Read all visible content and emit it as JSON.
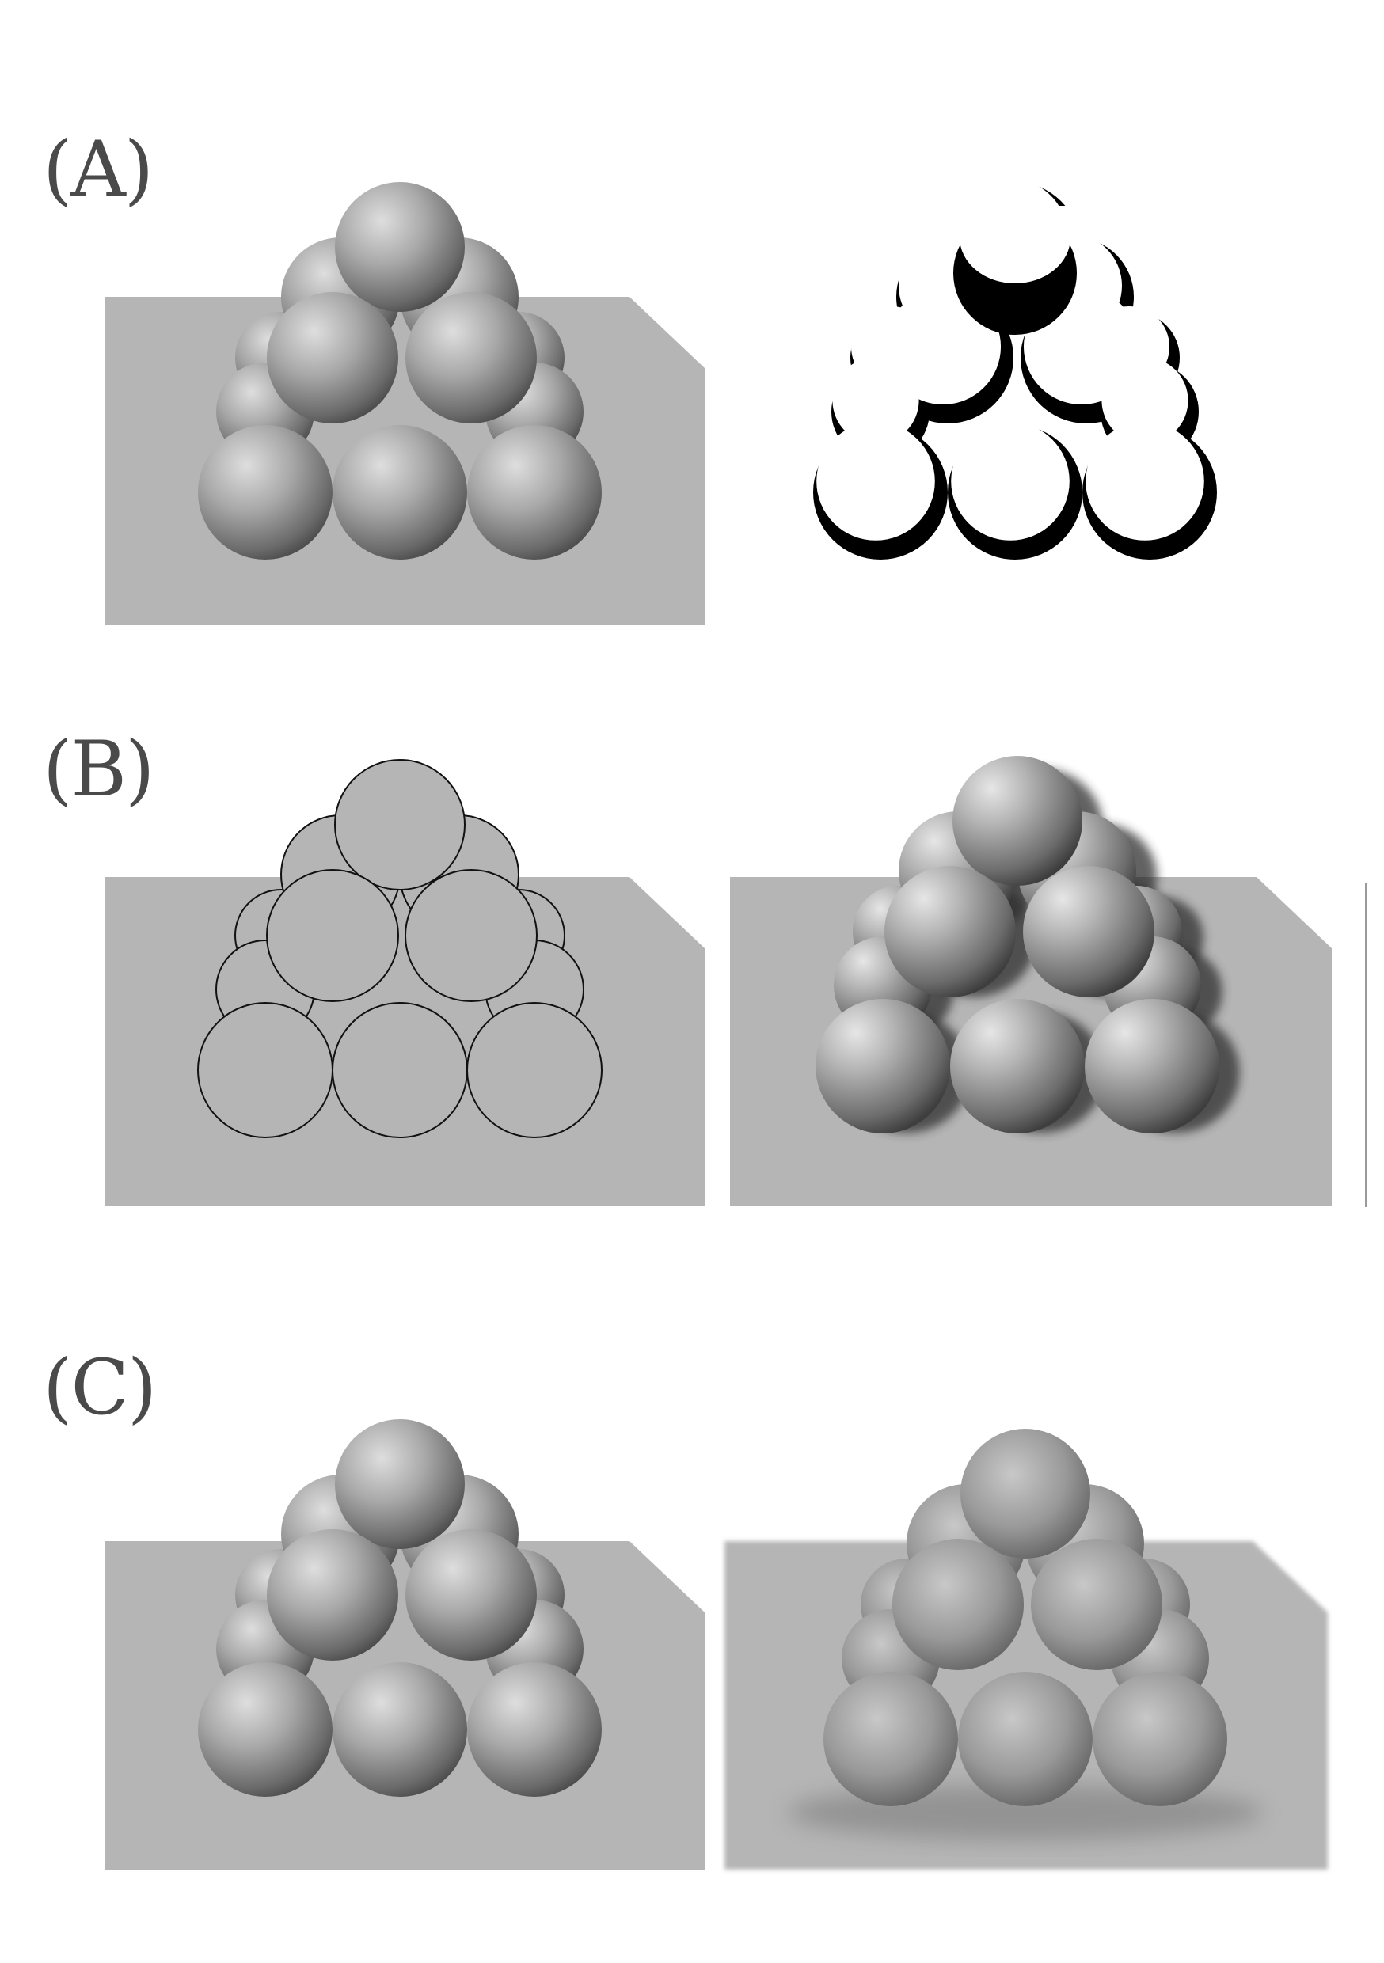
{
  "labels": {
    "panel_a": "(A)",
    "panel_b": "(B)",
    "panel_c": "(C)"
  },
  "colors": {
    "background": "#ffffff",
    "table_top": "#b5b5b5",
    "sphere_light": "#d6d6d6",
    "sphere_mid": "#9a9a9a",
    "sphere_dark": "#4e4e4e",
    "outline": "#111111",
    "mask_black": "#000000",
    "mask_white": "#ffffff"
  },
  "panels": [
    {
      "id": "A-left",
      "style": "shaded-render"
    },
    {
      "id": "A-right",
      "style": "shadow-mask"
    },
    {
      "id": "B-left",
      "style": "line-drawing"
    },
    {
      "id": "B-right",
      "style": "painted-render"
    },
    {
      "id": "C-left",
      "style": "shaded-render"
    },
    {
      "id": "C-right",
      "style": "soft-render"
    }
  ]
}
